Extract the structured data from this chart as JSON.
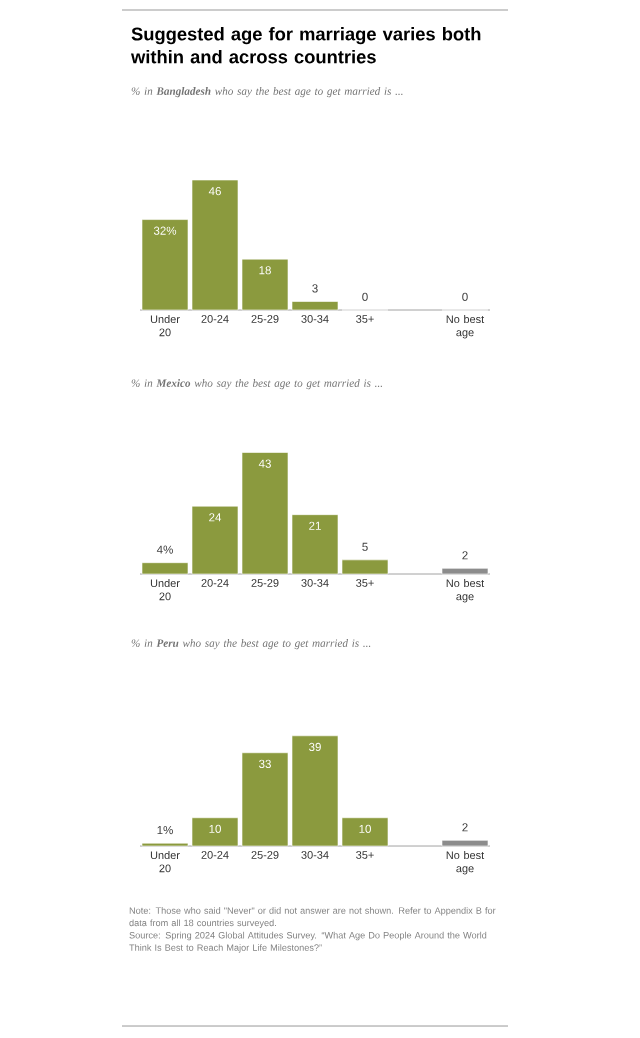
{
  "chart_data": [
    {
      "type": "bar",
      "title": "Suggested age for marriage varies both within and across countries",
      "subtitle": "% in **Bangladesh** who say the best age to get married is ...",
      "categories": [
        "Under 20",
        "20-24",
        "25-29",
        "30-34",
        "35+",
        null,
        "No best age"
      ],
      "values": [
        32,
        46,
        18,
        3,
        0,
        null,
        0
      ],
      "value_labels": [
        "32%",
        "46",
        "18",
        "3",
        "0",
        null,
        "0"
      ],
      "colors": [
        "#8b9a3e",
        "#8b9a3e",
        "#8b9a3e",
        "#8b9a3e",
        "#8b9a3e",
        "#8b9a3e",
        "#8c8c8c"
      ]
    },
    {
      "type": "bar",
      "subtitle": "% in **Mexico** who say the best age to get married is ...",
      "categories": [
        "Under 20",
        "20-24",
        "25-29",
        "30-34",
        "35+",
        null,
        "No best age"
      ],
      "values": [
        4,
        24,
        43,
        21,
        5,
        null,
        2
      ],
      "value_labels": [
        "4%",
        "24",
        "43",
        "21",
        "5",
        null,
        "2"
      ],
      "colors": [
        "#8b9a3e",
        "#8b9a3e",
        "#8b9a3e",
        "#8b9a3e",
        "#8b9a3e",
        "#8b9a3e",
        "#8c8c8c"
      ]
    },
    {
      "type": "bar",
      "subtitle": "% in **Peru** who say the best age to get married is ...",
      "categories": [
        "Under 20",
        "20-24",
        "25-29",
        "30-34",
        "35+",
        null,
        "No best age"
      ],
      "values": [
        1,
        10,
        33,
        39,
        10,
        null,
        2
      ],
      "value_labels": [
        "1%",
        "10",
        "33",
        "39",
        "10",
        null,
        "2"
      ],
      "colors": [
        "#8b9a3e",
        "#8b9a3e",
        "#8b9a3e",
        "#8b9a3e",
        "#8b9a3e",
        "#8b9a3e",
        "#8c8c8c"
      ],
      "annotations": [
        "Note: Those who said \"Never\" or did not answer are not shown. Refer to Appendix B for data from all 18 countries surveyed.",
        "Source: Spring 2024 Global Attitudes Survey. “What Age Do People Around the World Think Is Best to Reach Major Life Milestones?”"
      ]
    }
  ]
}
